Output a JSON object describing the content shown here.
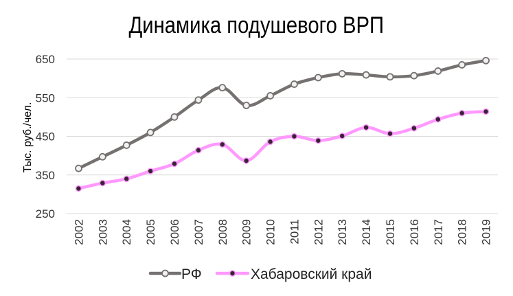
{
  "chart_data": {
    "type": "line",
    "title": "Динамика подушевого ВРП",
    "xlabel": "",
    "ylabel": "Тыс. руб./чел.",
    "categories": [
      "2002",
      "2003",
      "2004",
      "2005",
      "2006",
      "2007",
      "2008",
      "2009",
      "2010",
      "2011",
      "2012",
      "2013",
      "2014",
      "2015",
      "2016",
      "2017",
      "2018",
      "2019"
    ],
    "ylim": [
      250,
      650
    ],
    "yticks": [
      250,
      350,
      450,
      550,
      650
    ],
    "grid": true,
    "legend": "bottom",
    "series": [
      {
        "name": "РФ",
        "color": "#767171",
        "marker": "circle-hollow",
        "values": [
          367,
          397,
          427,
          460,
          500,
          544,
          576,
          530,
          555,
          585,
          602,
          612,
          609,
          604,
          607,
          619,
          635,
          646
        ]
      },
      {
        "name": "Хабаровский край",
        "color": "#FF99FF",
        "marker": "circle-filled",
        "values": [
          315,
          329,
          340,
          360,
          379,
          414,
          429,
          387,
          436,
          450,
          439,
          451,
          473,
          457,
          471,
          494,
          510,
          514
        ]
      }
    ]
  }
}
